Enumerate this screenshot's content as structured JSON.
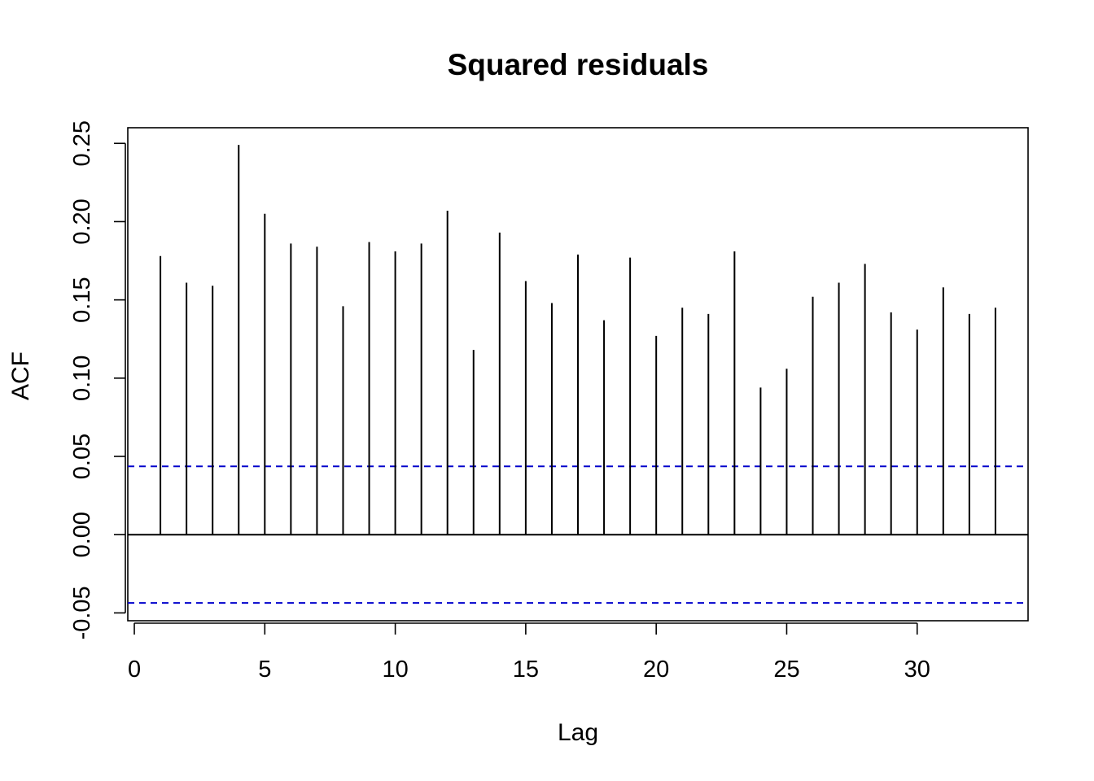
{
  "chart_data": {
    "type": "bar",
    "title": "Squared residuals",
    "xlabel": "Lag",
    "ylabel": "ACF",
    "x": [
      1,
      2,
      3,
      4,
      5,
      6,
      7,
      8,
      9,
      10,
      11,
      12,
      13,
      14,
      15,
      16,
      17,
      18,
      19,
      20,
      21,
      22,
      23,
      24,
      25,
      26,
      27,
      28,
      29,
      30,
      31,
      32,
      33
    ],
    "values": [
      0.178,
      0.161,
      0.159,
      0.249,
      0.205,
      0.186,
      0.184,
      0.146,
      0.187,
      0.181,
      0.186,
      0.207,
      0.118,
      0.193,
      0.162,
      0.148,
      0.179,
      0.137,
      0.177,
      0.127,
      0.145,
      0.141,
      0.181,
      0.094,
      0.106,
      0.152,
      0.161,
      0.173,
      0.142,
      0.131,
      0.158,
      0.141,
      0.145
    ],
    "xlim": [
      -0.25,
      34.25
    ],
    "ylim": [
      -0.055,
      0.26
    ],
    "x_ticks": [
      0,
      5,
      10,
      15,
      20,
      25,
      30
    ],
    "x_tick_labels": [
      "0",
      "5",
      "10",
      "15",
      "20",
      "25",
      "30"
    ],
    "y_ticks": [
      -0.05,
      0.0,
      0.05,
      0.1,
      0.15,
      0.2,
      0.25
    ],
    "y_tick_labels": [
      "-0.05",
      "0.00",
      "0.05",
      "0.10",
      "0.15",
      "0.20",
      "0.25"
    ],
    "confidence_bounds": [
      0.0436,
      -0.0436
    ],
    "confidence_color": "#0000cc",
    "bar_color": "#000000",
    "grid": false
  }
}
